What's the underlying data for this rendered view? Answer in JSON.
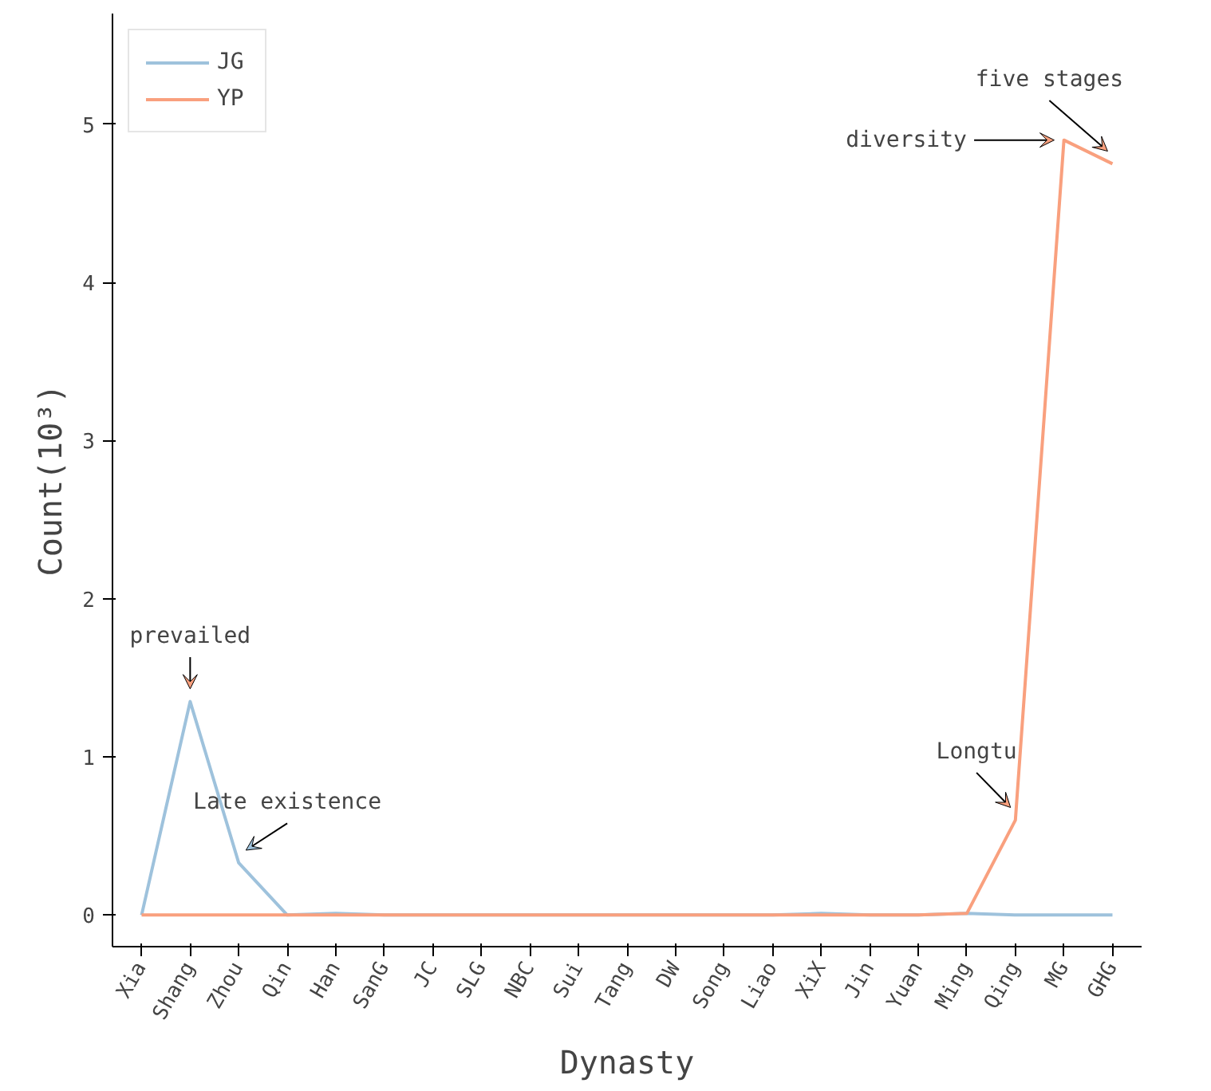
{
  "chart_data": {
    "type": "line",
    "xlabel": "Dynasty",
    "ylabel": "Count(10³)",
    "categories": [
      "Xia",
      "Shang",
      "Zhou",
      "Qin",
      "Han",
      "SanG",
      "JC",
      "SLG",
      "NBC",
      "Sui",
      "Tang",
      "DW",
      "Song",
      "Liao",
      "XiX",
      "Jin",
      "Yuan",
      "Ming",
      "Qing",
      "MG",
      "GHG"
    ],
    "series": [
      {
        "name": "JG",
        "color": "#9ec2dc",
        "values": [
          0,
          1.35,
          0.33,
          0,
          0.01,
          0,
          0,
          0,
          0,
          0,
          0,
          0,
          0,
          0,
          0.01,
          0,
          0,
          0.01,
          0,
          0,
          0
        ]
      },
      {
        "name": "YP",
        "color": "#f9a07e",
        "values": [
          0,
          0,
          0,
          0,
          0,
          0,
          0,
          0,
          0,
          0,
          0,
          0,
          0,
          0,
          0,
          0,
          0,
          0.01,
          0.6,
          4.9,
          4.75
        ]
      }
    ],
    "ylim": [
      -0.2,
      5.7
    ],
    "yticks": [
      0,
      1,
      2,
      3,
      4,
      5
    ],
    "grid": false,
    "legend": "top left",
    "marker": "none",
    "line_style": "solid",
    "annotations": [
      {
        "text": "prevailed",
        "x": "Shang",
        "y": 1.35
      },
      {
        "text": "Late existence",
        "x": "Zhou",
        "y": 0.33
      },
      {
        "text": "Longtu",
        "x": "Qing",
        "y": 0.6
      },
      {
        "text": "diversity",
        "x": "MG",
        "y": 4.9
      },
      {
        "text": "five stages",
        "x": "GHG",
        "y": 4.75
      }
    ]
  }
}
